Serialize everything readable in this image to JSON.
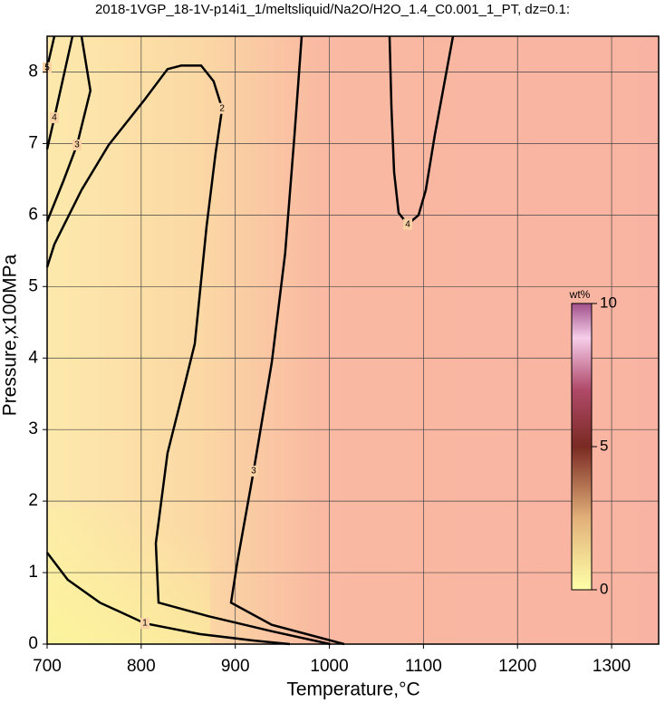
{
  "chart_data": {
    "type": "contour",
    "title": "2018-1VGP_18-1V-p14i1_1/meltsliquid/Na2O/H2O_1.4_C0.001_1_PT, dz=0.1:",
    "x_label": "Temperature,°C",
    "y_label": "Pressure,x100MPa",
    "xlim": [
      700,
      1350
    ],
    "xticks": [
      700,
      800,
      900,
      1000,
      1100,
      1200,
      1300
    ],
    "ylim": [
      0,
      8.5
    ],
    "yticks": [
      0,
      1,
      2,
      3,
      4,
      5,
      6,
      7,
      8
    ],
    "grid": true,
    "colorbar": {
      "label": "wt%",
      "lim": [
        0,
        10
      ],
      "ticks": [
        0,
        5,
        10
      ]
    },
    "contours": [
      {
        "level": 1,
        "x": [
          700,
          722,
          756,
          804,
          862,
          920,
          958
        ],
        "y": [
          1.28,
          0.9,
          0.58,
          0.29,
          0.14,
          0.05,
          0
        ]
      },
      {
        "level": 2,
        "x": [
          1001,
          938.8,
          871.4,
          818.4,
          815.6,
          828,
          842.5,
          857,
          869.5,
          879,
          886,
          877,
          863.7,
          842.5,
          828,
          804,
          765.5,
          736.6,
          707.7,
          700
        ],
        "y": [
          0,
          0.18,
          0.39,
          0.58,
          1.41,
          2.67,
          3.43,
          4.2,
          5.84,
          6.86,
          7.49,
          7.87,
          8.09,
          8.09,
          8.04,
          7.62,
          6.98,
          6.35,
          5.59,
          5.27
        ]
      },
      {
        "level": 3,
        "x": [
          736.6,
          746,
          731.8,
          717.4,
          700
        ],
        "y": [
          8.5,
          7.74,
          6.98,
          6.48,
          5.91
        ]
      },
      {
        "level": 3,
        "x": [
          970.6,
          962.9,
          953,
          938.8,
          919.5,
          902.2,
          895.5,
          938.8,
          1015.8
        ],
        "y": [
          8.5,
          7.11,
          5.46,
          3.94,
          2.42,
          1.15,
          0.58,
          0.27,
          0
        ]
      },
      {
        "level": 4,
        "x": [
          1064,
          1066,
          1068.8,
          1073.6,
          1083.3,
          1094.8,
          1102.5,
          1112,
          1131.4
        ],
        "y": [
          8.5,
          7.49,
          6.6,
          6.03,
          5.87,
          6.0,
          6.35,
          7.11,
          8.5
        ]
      },
      {
        "level": 4,
        "x": [
          727,
          707.7,
          700
        ],
        "y": [
          8.5,
          7.36,
          6.92
        ]
      },
      {
        "level": 5,
        "x": [
          707.7,
          700
        ],
        "y": [
          8.5,
          8.06
        ]
      }
    ]
  }
}
